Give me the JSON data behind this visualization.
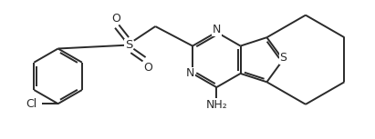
{
  "background_color": "#ffffff",
  "line_color": "#2a2a2a",
  "line_width": 1.4,
  "font_size": 9.0,
  "figsize": [
    4.11,
    1.53
  ],
  "dpi": 100,
  "xlim": [
    -3.8,
    4.6
  ],
  "ylim": [
    -1.5,
    1.5
  ]
}
